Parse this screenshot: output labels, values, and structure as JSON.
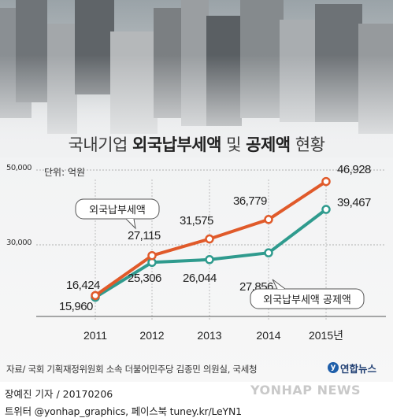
{
  "title_parts": {
    "pre": "국내기업 ",
    "bold1": "외국납부세액",
    "mid": " 및 ",
    "bold2": "공제액",
    "post": " 현황"
  },
  "unit_label": "단위: 억원",
  "source": "자료/ 국회 기획재정위원회 소속 더불어민주당 김종민 의원실, 국세청",
  "logo": "연합뉴스",
  "watermark": "YONHAP NEWS",
  "credit": "장예진 기자 / 20170206",
  "social": "트위터 @yonhap_graphics, 페이스북 tuney.kr/LeYN1",
  "colors": {
    "tax": "#e05a2a",
    "credit": "#2f9b8e"
  },
  "chart_data": {
    "type": "line",
    "x": [
      "2011",
      "2012",
      "2013",
      "2014",
      "2015년"
    ],
    "y_ticks": [
      "50,000",
      "30,000"
    ],
    "ylim": [
      10000,
      50000
    ],
    "series": [
      {
        "name": "외국납부세액",
        "values": [
          16424,
          27115,
          31575,
          36779,
          46928
        ],
        "labels": [
          "16,424",
          "27,115",
          "31,575",
          "36,779",
          "46,928"
        ]
      },
      {
        "name": "외국납부세액 공제액",
        "values": [
          15960,
          25306,
          26044,
          27856,
          39467
        ],
        "labels": [
          "15,960",
          "25,306",
          "26,044",
          "27,856",
          "39,467"
        ]
      }
    ]
  }
}
